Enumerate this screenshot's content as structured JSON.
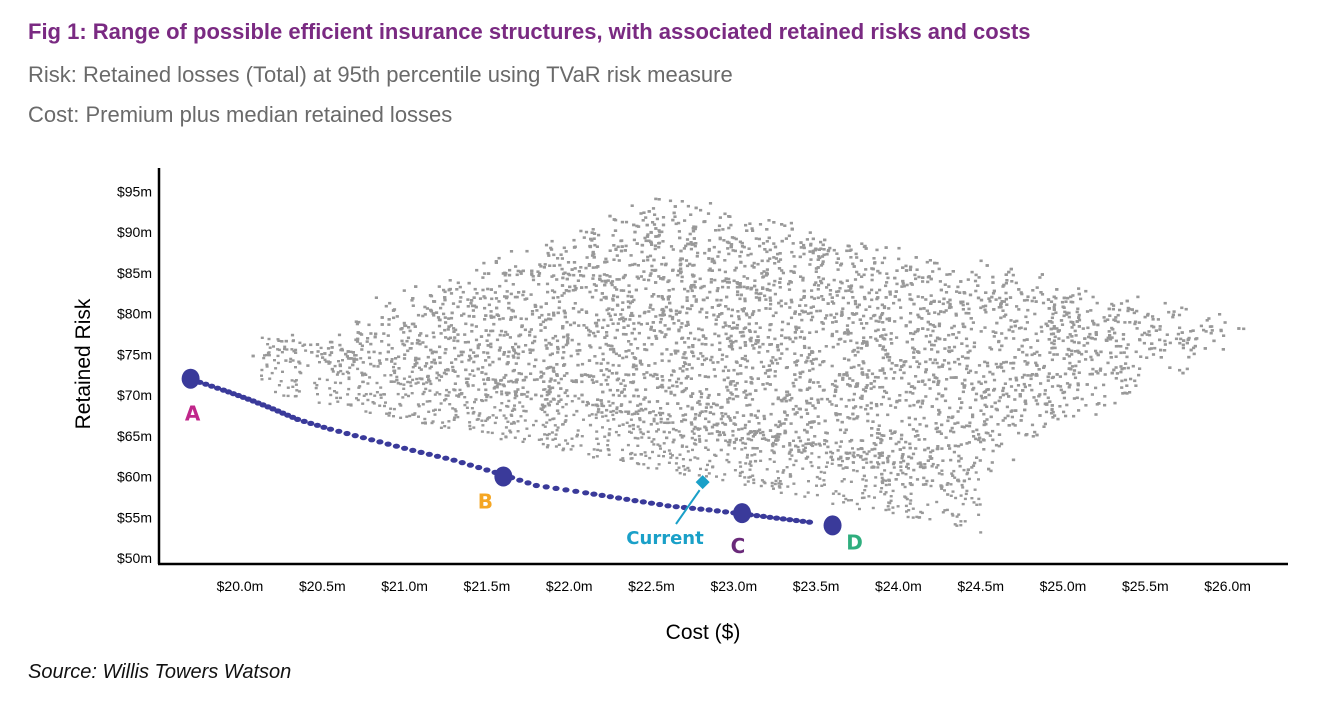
{
  "figure": {
    "title": "Fig 1: Range of possible efficient insurance structures, with associated retained risks and costs",
    "risk_note": "Risk: Retained losses (Total) at 95th percentile using TVaR risk measure",
    "cost_note": "Cost: Premium plus median retained losses",
    "source": "Source: Willis Towers Watson"
  },
  "chart_data": {
    "type": "scatter",
    "xlabel": "Cost ($)",
    "ylabel": "Retained Risk",
    "x_unit": "$m",
    "y_unit": "$m",
    "xlim": [
      19.6,
      26.4
    ],
    "ylim": [
      49.5,
      97
    ],
    "x_ticks": [
      20.0,
      20.5,
      21.0,
      21.5,
      22.0,
      22.5,
      23.0,
      23.5,
      24.0,
      24.5,
      25.0,
      25.5,
      26.0
    ],
    "x_tick_labels": [
      "$20.0m",
      "$20.5m",
      "$21.0m",
      "$21.5m",
      "$22.0m",
      "$22.5m",
      "$23.0m",
      "$23.5m",
      "$24.0m",
      "$24.5m",
      "$25.0m",
      "$25.5m",
      "$26.0m"
    ],
    "y_ticks": [
      50,
      55,
      60,
      65,
      70,
      75,
      80,
      85,
      90,
      95
    ],
    "y_tick_labels": [
      "$50m",
      "$55m",
      "$60m",
      "$65m",
      "$70m",
      "$75m",
      "$80m",
      "$85m",
      "$90m",
      "$95m"
    ],
    "grid": false,
    "colors": {
      "cloud": "#999999",
      "frontier": "#3a3a9a",
      "current": "#1aa0c8"
    },
    "cloud_region": {
      "x": [
        19.85,
        26.3
      ],
      "y": [
        56.5,
        92.5
      ]
    },
    "efficient_frontier": [
      [
        19.72,
        71.8
      ],
      [
        19.9,
        70.6
      ],
      [
        20.05,
        69.5
      ],
      [
        20.2,
        68.3
      ],
      [
        20.35,
        67.0
      ],
      [
        20.55,
        65.8
      ],
      [
        20.8,
        64.5
      ],
      [
        21.05,
        63.2
      ],
      [
        21.3,
        62.0
      ],
      [
        21.55,
        60.5
      ],
      [
        21.8,
        58.9
      ],
      [
        22.1,
        58.0
      ],
      [
        22.35,
        57.2
      ],
      [
        22.6,
        56.4
      ],
      [
        22.85,
        55.9
      ],
      [
        23.1,
        55.3
      ],
      [
        23.3,
        54.8
      ],
      [
        23.5,
        54.3
      ]
    ],
    "labeled_points": [
      {
        "label": "A",
        "x": 19.7,
        "y": 72.0,
        "color": "#c0268a"
      },
      {
        "label": "B",
        "x": 21.6,
        "y": 60.0,
        "color": "#f5a623"
      },
      {
        "label": "C",
        "x": 23.05,
        "y": 55.5,
        "color": "#6a2a7a"
      },
      {
        "label": "D",
        "x": 23.6,
        "y": 54.0,
        "color": "#2fae7e"
      }
    ],
    "current_point": {
      "label": "Current",
      "x": 22.75,
      "y": 59.8
    }
  }
}
